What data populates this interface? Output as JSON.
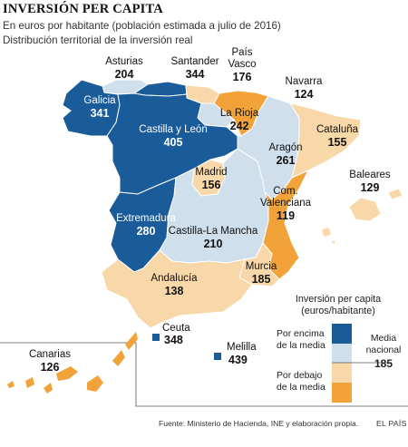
{
  "header": {
    "title": "INVERSIÓN PER CAPITA",
    "subtitle1": "En euros por habitante (población estimada a julio de 2016)",
    "subtitle2": "Distribución territorial de la inversión real"
  },
  "colors": {
    "high_strong": "#1a5b9a",
    "high_light": "#cfe0ec",
    "low_light": "#f8d7a8",
    "low_strong": "#f1a33a",
    "sea": "#ffffff",
    "border": "#ffffff"
  },
  "regions": [
    {
      "name": "Asturias",
      "value": "204",
      "category": "high_light"
    },
    {
      "name": "Santander",
      "value": "344",
      "category": "high_strong"
    },
    {
      "name": "País Vasco",
      "name_line1": "País",
      "name_line2": "Vasco",
      "value": "176",
      "category": "low_light"
    },
    {
      "name": "Navarra",
      "value": "124",
      "category": "low_strong"
    },
    {
      "name": "Galicia",
      "value": "341",
      "category": "high_strong"
    },
    {
      "name": "La Rioja",
      "value": "242",
      "category": "high_light"
    },
    {
      "name": "Castilla y León",
      "value": "405",
      "category": "high_strong"
    },
    {
      "name": "Cataluña",
      "value": "155",
      "category": "low_light"
    },
    {
      "name": "Aragón",
      "value": "261",
      "category": "high_light"
    },
    {
      "name": "Madrid",
      "value": "156",
      "category": "low_light"
    },
    {
      "name": "Baleares",
      "value": "129",
      "category": "low_light"
    },
    {
      "name": "Com. Valenciana",
      "name_line1": "Com.",
      "name_line2": "Valenciana",
      "value": "119",
      "category": "low_strong"
    },
    {
      "name": "Extremadura",
      "value": "280",
      "category": "high_strong"
    },
    {
      "name": "Castilla-La Mancha",
      "value": "210",
      "category": "high_light"
    },
    {
      "name": "Murcia",
      "value": "185",
      "category": "low_light"
    },
    {
      "name": "Andalucía",
      "value": "138",
      "category": "low_light"
    },
    {
      "name": "Ceuta",
      "value": "348",
      "category": "high_strong"
    },
    {
      "name": "Melilla",
      "value": "439",
      "category": "high_strong"
    },
    {
      "name": "Canarias",
      "value": "126",
      "category": "low_strong"
    }
  ],
  "legend": {
    "title_line1": "Inversión per capita",
    "title_line2": "(euros/habitante)",
    "above_line1": "Por encima",
    "above_line2": "de la media",
    "below_line1": "Por debajo",
    "below_line2": "de la media",
    "mean_line1": "Media",
    "mean_line2": "nacional",
    "mean_value": "185"
  },
  "footer": {
    "source": "Fuente: Ministerio de Hacienda, INE y elaboración propia.",
    "brand": "EL PAÍS"
  }
}
